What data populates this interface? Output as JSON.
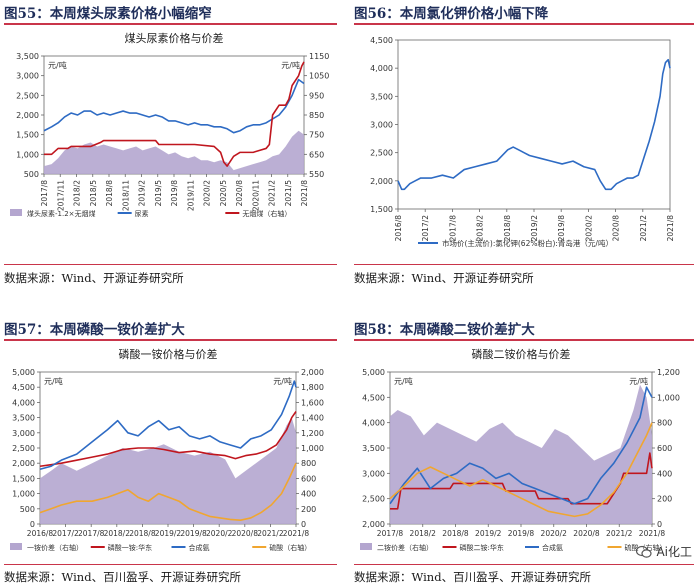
{
  "panels": [
    {
      "fig_title": "图55：本周煤头尿素价格小幅缩窄",
      "source": "数据来源：Wind、开源证券研究所"
    },
    {
      "fig_title": "图56：本周氯化钾价格小幅下降",
      "source": "数据来源：Wind、开源证券研究所"
    },
    {
      "fig_title": "图57：本周磷酸一铵价差扩大",
      "source": "数据来源：Wind、百川盈孚、开源证券研究所"
    },
    {
      "fig_title": "图58：本周磷酸二铵价差扩大",
      "source": "数据来源：Wind、百川盈孚、开源证券研究所"
    }
  ],
  "watermark": {
    "text": "Ai化工",
    "icon": "wechat-icon"
  },
  "chart_data": [
    {
      "type": "line",
      "title": "煤头尿素价格与价差",
      "unit_left": "元/吨",
      "unit_right": "元/吨",
      "ylim_left": [
        500,
        3500
      ],
      "yticks_left": [
        "500",
        "1,000",
        "1,500",
        "2,000",
        "2,500",
        "3,000",
        "3,500"
      ],
      "ylim_right": [
        550,
        1150
      ],
      "yticks_right": [
        "550",
        "650",
        "750",
        "850",
        "950",
        "1050",
        "1150"
      ],
      "x_range": [
        2017.583,
        2021.583
      ],
      "x_ticks": [
        "2017/8",
        "2017/11",
        "2018/2",
        "2018/5",
        "2018/8",
        "2018/11",
        "2019/2",
        "2019/5",
        "2019/8",
        "2019/11",
        "2020/2",
        "2020/5",
        "2020/8",
        "2020/11",
        "2021/2",
        "2021/5",
        "2021/8"
      ],
      "series": [
        {
          "name": "煤头尿素-1.2×无烟煤",
          "kind": "area",
          "axis": "left",
          "color": "#b4a6cf",
          "x": [
            2017.583,
            2017.7,
            2017.8,
            2017.9,
            2018.0,
            2018.1,
            2018.2,
            2018.3,
            2018.4,
            2018.5,
            2018.6,
            2018.7,
            2018.8,
            2018.9,
            2019.0,
            2019.1,
            2019.2,
            2019.3,
            2019.4,
            2019.5,
            2019.6,
            2019.7,
            2019.8,
            2019.9,
            2020.0,
            2020.1,
            2020.2,
            2020.3,
            2020.4,
            2020.5,
            2020.6,
            2020.7,
            2020.8,
            2020.9,
            2021.0,
            2021.1,
            2021.2,
            2021.3,
            2021.4,
            2021.5,
            2021.583
          ],
          "y": [
            700,
            750,
            900,
            1100,
            1200,
            1150,
            1250,
            1300,
            1200,
            1250,
            1200,
            1150,
            1100,
            1150,
            1200,
            1100,
            1150,
            1200,
            1100,
            1000,
            1050,
            950,
            900,
            950,
            850,
            850,
            800,
            850,
            800,
            600,
            650,
            700,
            750,
            800,
            850,
            950,
            1000,
            1200,
            1450,
            1600,
            1500
          ]
        },
        {
          "name": "尿素",
          "kind": "line",
          "axis": "left",
          "color": "#2e6bc4",
          "x": [
            2017.583,
            2017.7,
            2017.8,
            2017.9,
            2018.0,
            2018.1,
            2018.2,
            2018.3,
            2018.4,
            2018.5,
            2018.6,
            2018.7,
            2018.8,
            2018.9,
            2019.0,
            2019.1,
            2019.2,
            2019.3,
            2019.4,
            2019.5,
            2019.6,
            2019.7,
            2019.8,
            2019.9,
            2020.0,
            2020.1,
            2020.2,
            2020.3,
            2020.4,
            2020.5,
            2020.6,
            2020.7,
            2020.8,
            2020.9,
            2021.0,
            2021.1,
            2021.2,
            2021.3,
            2021.4,
            2021.5,
            2021.583
          ],
          "y": [
            1600,
            1700,
            1800,
            1950,
            2050,
            2000,
            2100,
            2100,
            2000,
            2050,
            2000,
            2050,
            2100,
            2050,
            2050,
            2000,
            1950,
            2000,
            1950,
            1850,
            1850,
            1800,
            1750,
            1800,
            1750,
            1750,
            1700,
            1700,
            1650,
            1550,
            1600,
            1700,
            1750,
            1750,
            1800,
            1900,
            2000,
            2200,
            2500,
            2900,
            2800
          ]
        },
        {
          "name": "无烟煤（右轴）",
          "kind": "line",
          "axis": "right",
          "color": "#c0161e",
          "x": [
            2017.583,
            2017.7,
            2017.8,
            2017.95,
            2018.0,
            2018.3,
            2018.45,
            2018.5,
            2018.8,
            2019.0,
            2019.3,
            2019.35,
            2019.7,
            2019.9,
            2020.2,
            2020.3,
            2020.35,
            2020.4,
            2020.5,
            2020.6,
            2020.8,
            2020.9,
            2021.0,
            2021.05,
            2021.1,
            2021.2,
            2021.3,
            2021.35,
            2021.4,
            2021.5,
            2021.55,
            2021.583
          ],
          "y": [
            650,
            650,
            680,
            680,
            690,
            690,
            710,
            720,
            720,
            720,
            720,
            700,
            700,
            700,
            690,
            660,
            610,
            590,
            640,
            660,
            660,
            670,
            680,
            700,
            850,
            900,
            900,
            930,
            1000,
            1050,
            1100,
            1120
          ]
        }
      ]
    },
    {
      "type": "line",
      "title": "",
      "ylim": [
        1500,
        4500
      ],
      "yticks": [
        "1,500",
        "2,000",
        "2,500",
        "3,000",
        "3,500",
        "4,000",
        "4,500"
      ],
      "x_range": [
        2016.583,
        2021.583
      ],
      "x_ticks": [
        "2016/8",
        "2017/2",
        "2017/8",
        "2018/2",
        "2018/8",
        "2019/2",
        "2019/8",
        "2020/2",
        "2020/8",
        "2021/2",
        "2021/8"
      ],
      "series": [
        {
          "name": "市场价(主流价):氯化钾(62%粉白):青岛港（元/吨）",
          "kind": "line",
          "color": "#2e6bc4",
          "x": [
            2016.583,
            2016.65,
            2016.7,
            2016.8,
            2016.9,
            2017.0,
            2017.2,
            2017.4,
            2017.6,
            2017.8,
            2018.0,
            2018.2,
            2018.4,
            2018.5,
            2018.6,
            2018.7,
            2018.8,
            2018.9,
            2019.0,
            2019.2,
            2019.4,
            2019.6,
            2019.8,
            2020.0,
            2020.2,
            2020.3,
            2020.4,
            2020.5,
            2020.6,
            2020.7,
            2020.8,
            2020.9,
            2021.0,
            2021.1,
            2021.2,
            2021.3,
            2021.4,
            2021.45,
            2021.5,
            2021.55,
            2021.583
          ],
          "y": [
            2000,
            1850,
            1850,
            1950,
            2000,
            2050,
            2050,
            2100,
            2050,
            2200,
            2250,
            2300,
            2350,
            2450,
            2550,
            2600,
            2550,
            2500,
            2450,
            2400,
            2350,
            2300,
            2350,
            2250,
            2200,
            2000,
            1850,
            1850,
            1950,
            2000,
            2050,
            2050,
            2100,
            2400,
            2700,
            3050,
            3500,
            3900,
            4100,
            4150,
            4000
          ]
        }
      ]
    },
    {
      "type": "line",
      "title": "磷酸一铵价格与价差",
      "unit_left": "元/吨",
      "unit_right": "元/吨",
      "ylim_left": [
        0,
        5000
      ],
      "yticks_left": [
        "0",
        "500",
        "1,000",
        "1,500",
        "2,000",
        "2,500",
        "3,000",
        "3,500",
        "4,000",
        "4,500",
        "5,000"
      ],
      "ylim_right": [
        0,
        2000
      ],
      "yticks_right": [
        "0",
        "200",
        "400",
        "600",
        "800",
        "1,000",
        "1,200",
        "1,400",
        "1,600",
        "1,800",
        "2,000"
      ],
      "x_range": [
        2016.583,
        2021.583
      ],
      "x_ticks": [
        "2016/8",
        "2017/2",
        "2017/8",
        "2018/2",
        "2018/8",
        "2019/2",
        "2019/8",
        "2020/2",
        "2020/8",
        "2021/2",
        "2021/8"
      ],
      "series": [
        {
          "name": "一铵价差（右轴）",
          "kind": "area",
          "axis": "right",
          "color": "#b4a6cf",
          "x": [
            2016.583,
            2016.8,
            2017.0,
            2017.3,
            2017.6,
            2017.9,
            2018.2,
            2018.5,
            2018.8,
            2019.0,
            2019.3,
            2019.6,
            2019.9,
            2020.2,
            2020.4,
            2020.6,
            2020.8,
            2021.0,
            2021.2,
            2021.4,
            2021.5,
            2021.583
          ],
          "y": [
            600,
            700,
            800,
            700,
            800,
            900,
            1000,
            950,
            1000,
            1050,
            950,
            900,
            950,
            850,
            600,
            700,
            800,
            900,
            1000,
            1300,
            1400,
            1200
          ]
        },
        {
          "name": "磷酸一铵:华东",
          "kind": "line",
          "axis": "left",
          "color": "#c0161e",
          "x": [
            2016.583,
            2016.8,
            2017.0,
            2017.3,
            2017.6,
            2017.9,
            2018.2,
            2018.5,
            2018.8,
            2019.0,
            2019.3,
            2019.6,
            2019.9,
            2020.2,
            2020.4,
            2020.6,
            2020.8,
            2021.0,
            2021.2,
            2021.4,
            2021.5,
            2021.583
          ],
          "y": [
            1900,
            1950,
            2000,
            2100,
            2200,
            2300,
            2450,
            2500,
            2500,
            2450,
            2350,
            2400,
            2300,
            2250,
            2150,
            2250,
            2300,
            2400,
            2600,
            3100,
            3500,
            3700
          ]
        },
        {
          "name": "合成氨",
          "kind": "line",
          "axis": "left",
          "color": "#2e6bc4",
          "x": [
            2016.583,
            2016.8,
            2017.0,
            2017.3,
            2017.6,
            2017.9,
            2018.1,
            2018.3,
            2018.5,
            2018.7,
            2018.9,
            2019.1,
            2019.3,
            2019.5,
            2019.7,
            2019.9,
            2020.1,
            2020.3,
            2020.5,
            2020.7,
            2020.9,
            2021.1,
            2021.3,
            2021.45,
            2021.55,
            2021.583
          ],
          "y": [
            1800,
            1900,
            2100,
            2300,
            2700,
            3100,
            3400,
            3000,
            2900,
            3200,
            3400,
            3100,
            3200,
            2900,
            2800,
            2900,
            2700,
            2600,
            2500,
            2800,
            2900,
            3100,
            3600,
            4200,
            4700,
            4500
          ]
        },
        {
          "name": "硫酸（右轴）",
          "kind": "line",
          "axis": "right",
          "color": "#f0a630",
          "x": [
            2016.583,
            2016.8,
            2017.0,
            2017.3,
            2017.6,
            2017.9,
            2018.1,
            2018.3,
            2018.5,
            2018.7,
            2018.9,
            2019.1,
            2019.3,
            2019.5,
            2019.7,
            2019.9,
            2020.1,
            2020.3,
            2020.5,
            2020.7,
            2020.9,
            2021.1,
            2021.3,
            2021.45,
            2021.583
          ],
          "y": [
            150,
            200,
            250,
            300,
            300,
            350,
            400,
            450,
            350,
            300,
            400,
            350,
            300,
            200,
            150,
            100,
            80,
            60,
            50,
            80,
            150,
            250,
            400,
            600,
            800
          ]
        }
      ]
    },
    {
      "type": "line",
      "title": "磷酸二铵价格与价差",
      "unit_left": "元/吨",
      "unit_right": "元/吨",
      "ylim_left": [
        2000,
        5000
      ],
      "yticks_left": [
        "2,000",
        "2,500",
        "3,000",
        "3,500",
        "4,000",
        "4,500",
        "5,000"
      ],
      "ylim_right": [
        0,
        1200
      ],
      "yticks_right": [
        "0",
        "200",
        "400",
        "600",
        "800",
        "1,000",
        "1,200"
      ],
      "x_range": [
        2017.583,
        2021.583
      ],
      "x_ticks": [
        "2017/8",
        "2018/2",
        "2018/8",
        "2019/2",
        "2019/8",
        "2020/2",
        "2020/8",
        "2021/2",
        "2021/8"
      ],
      "series": [
        {
          "name": "二铵价差（右轴）",
          "kind": "area",
          "axis": "right",
          "color": "#b4a6cf",
          "x": [
            2017.583,
            2017.7,
            2017.9,
            2018.1,
            2018.3,
            2018.5,
            2018.7,
            2018.9,
            2019.1,
            2019.3,
            2019.5,
            2019.7,
            2019.9,
            2020.1,
            2020.3,
            2020.5,
            2020.7,
            2020.9,
            2021.1,
            2021.3,
            2021.4,
            2021.5,
            2021.583
          ],
          "y": [
            850,
            900,
            850,
            700,
            800,
            750,
            700,
            650,
            750,
            800,
            700,
            650,
            600,
            750,
            700,
            600,
            500,
            550,
            600,
            900,
            1100,
            1000,
            700
          ]
        },
        {
          "name": "磷酸二铵:华东",
          "kind": "line",
          "axis": "left",
          "color": "#c0161e",
          "x": [
            2017.583,
            2017.7,
            2017.75,
            2018.0,
            2018.1,
            2018.5,
            2018.55,
            2019.3,
            2019.35,
            2019.8,
            2019.85,
            2020.3,
            2020.35,
            2020.9,
            2021.0,
            2021.1,
            2021.15,
            2021.5,
            2021.55,
            2021.583
          ],
          "y": [
            2300,
            2300,
            2700,
            2700,
            2700,
            2700,
            2800,
            2800,
            2650,
            2650,
            2500,
            2500,
            2400,
            2400,
            2600,
            2800,
            3000,
            3000,
            3400,
            3100
          ]
        },
        {
          "name": "合成氨",
          "kind": "line",
          "axis": "left",
          "color": "#2e6bc4",
          "x": [
            2017.583,
            2017.8,
            2018.0,
            2018.2,
            2018.4,
            2018.6,
            2018.8,
            2019.0,
            2019.2,
            2019.4,
            2019.6,
            2019.8,
            2020.0,
            2020.2,
            2020.4,
            2020.6,
            2020.8,
            2021.0,
            2021.2,
            2021.4,
            2021.5,
            2021.583
          ],
          "y": [
            2400,
            2800,
            3100,
            2700,
            2900,
            3000,
            3200,
            3100,
            2900,
            3000,
            2800,
            2700,
            2600,
            2500,
            2400,
            2500,
            2900,
            3200,
            3600,
            4100,
            4700,
            4500
          ]
        },
        {
          "name": "硫酸（右轴）",
          "kind": "line",
          "axis": "right",
          "color": "#f0a630",
          "x": [
            2017.583,
            2017.8,
            2018.0,
            2018.2,
            2018.4,
            2018.6,
            2018.8,
            2019.0,
            2019.2,
            2019.4,
            2019.6,
            2019.8,
            2020.0,
            2020.2,
            2020.4,
            2020.6,
            2020.8,
            2021.0,
            2021.2,
            2021.4,
            2021.5,
            2021.583
          ],
          "y": [
            200,
            300,
            400,
            450,
            400,
            350,
            300,
            350,
            300,
            250,
            200,
            150,
            100,
            80,
            60,
            80,
            150,
            250,
            400,
            600,
            700,
            800
          ]
        }
      ]
    }
  ]
}
